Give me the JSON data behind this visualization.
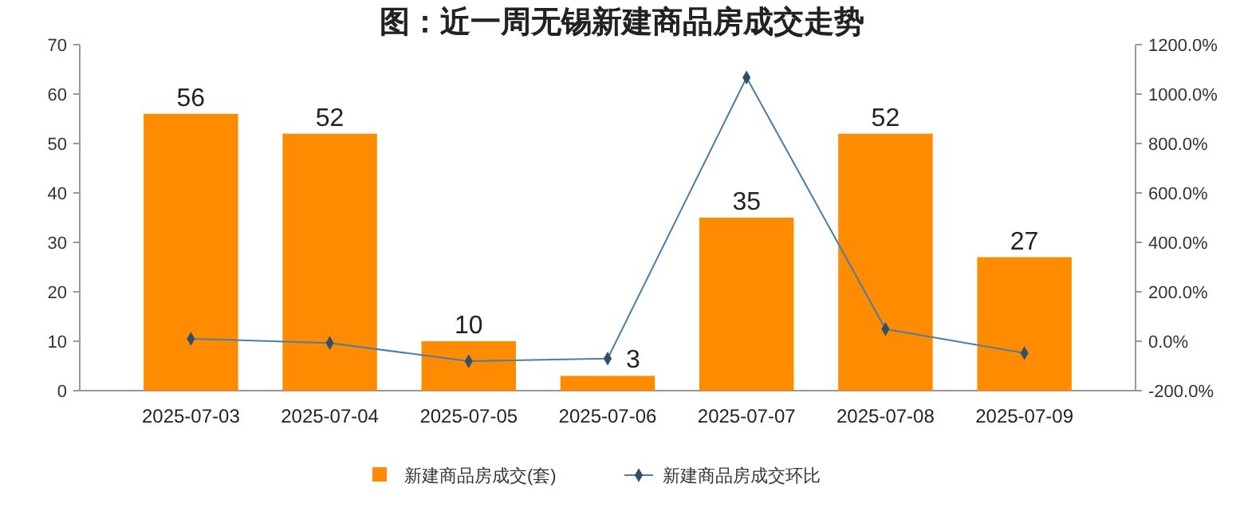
{
  "chart_data": {
    "type": "bar",
    "title": "图：近一周无锡新建商品房成交走势",
    "categories": [
      "2025-07-03",
      "2025-07-04",
      "2025-07-05",
      "2025-07-06",
      "2025-07-07",
      "2025-07-08",
      "2025-07-09"
    ],
    "series": [
      {
        "name": "新建商品房成交(套)",
        "color": "#ff8c00",
        "values": [
          56,
          52,
          10,
          3,
          35,
          52,
          27
        ],
        "value_labels": [
          "56",
          "52",
          "10",
          "3",
          "35",
          "52",
          "27"
        ]
      },
      {
        "name": "新建商品房成交环比",
        "type": "line",
        "axis": "y2",
        "color": "#4a7ea8",
        "marker": "diamond",
        "values": [
          10,
          -7,
          -81,
          -70,
          1067,
          49,
          -48
        ]
      }
    ],
    "ylim": [
      0,
      70
    ],
    "yticks": [
      0,
      10,
      20,
      30,
      40,
      50,
      60,
      70
    ],
    "y2lim": [
      -200,
      1200
    ],
    "y2ticks": [
      {
        "value": -200,
        "label": "-200.0%"
      },
      {
        "value": 0,
        "label": "0.0%"
      },
      {
        "value": 200,
        "label": "200.0%"
      },
      {
        "value": 400,
        "label": "400.0%"
      },
      {
        "value": 600,
        "label": "600.0%"
      },
      {
        "value": 800,
        "label": "800.0%"
      },
      {
        "value": 1000,
        "label": "1000.0%"
      },
      {
        "value": 1200,
        "label": "1200.0%"
      }
    ],
    "grid": false,
    "legend": "bottom"
  }
}
